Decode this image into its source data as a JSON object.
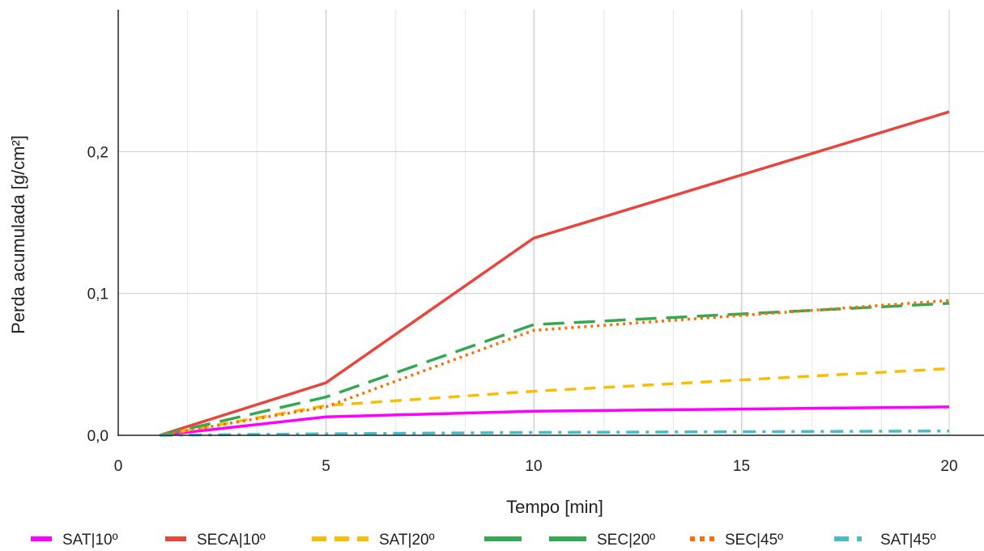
{
  "chart_data": {
    "type": "line",
    "title": "",
    "xlabel": "Tempo [min]",
    "ylabel": "Perda acumulada [g/cm²]",
    "xlim": [
      0,
      20
    ],
    "ylim": [
      0,
      0.3
    ],
    "xticks": [
      0,
      5,
      10,
      15,
      20
    ],
    "xtick_labels": [
      "0",
      "5",
      "10",
      "15",
      "20"
    ],
    "yticks": [
      0,
      0.1,
      0.2
    ],
    "ytick_labels": [
      "0,0",
      "0,1",
      "0,2"
    ],
    "x_minor_step": 1.67,
    "grid": true,
    "legend_position": "bottom",
    "x": [
      1,
      5,
      10,
      20
    ],
    "series": [
      {
        "name": "SAT|10º",
        "values": [
          0,
          0.013,
          0.017,
          0.02
        ],
        "color": "#ff00ff",
        "dash": "solid"
      },
      {
        "name": "SECA|10º",
        "values": [
          0,
          0.037,
          0.139,
          0.228
        ],
        "color": "#e8453c",
        "dash": "solid"
      },
      {
        "name": "SAT|20º",
        "values": [
          0,
          0.021,
          0.031,
          0.047
        ],
        "color": "#fbbc04",
        "dash": "dashed"
      },
      {
        "name": "SEC|20º",
        "values": [
          0,
          0.027,
          0.078,
          0.093
        ],
        "color": "#34a853",
        "dash": "longdash"
      },
      {
        "name": "SEC|45º",
        "values": [
          0,
          0.02,
          0.074,
          0.095
        ],
        "color": "#ff6d01",
        "dash": "dotted"
      },
      {
        "name": "SAT|45º",
        "values": [
          0,
          0.001,
          0.002,
          0.003
        ],
        "color": "#46bdc6",
        "dash": "dashdot"
      }
    ]
  }
}
